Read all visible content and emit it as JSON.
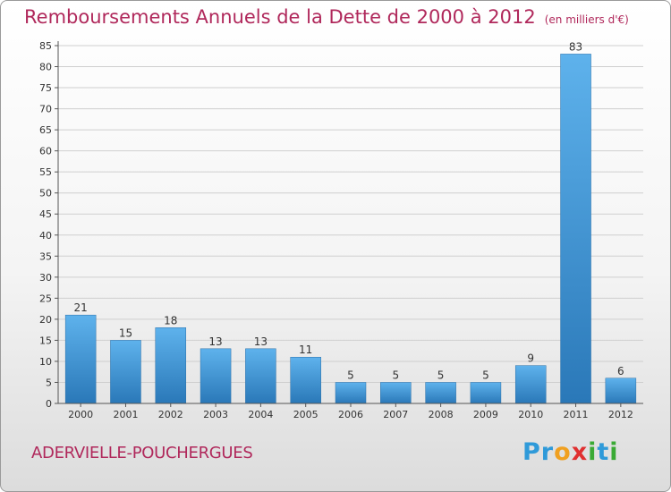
{
  "header": {
    "title": "Remboursements Annuels de la Dette de 2000 à 2012",
    "unit": "(en milliers d'€)"
  },
  "footer": {
    "commune": "ADERVIELLE-POUCHERGUES",
    "logo_letters": [
      {
        "ch": "P",
        "color": "#2f9ad9"
      },
      {
        "ch": "r",
        "color": "#2f9ad9"
      },
      {
        "ch": "o",
        "color": "#f0a020"
      },
      {
        "ch": "x",
        "color": "#e03030"
      },
      {
        "ch": "i",
        "color": "#3aaa35"
      },
      {
        "ch": "t",
        "color": "#2f9ad9"
      },
      {
        "ch": "i",
        "color": "#3aaa35"
      }
    ]
  },
  "chart_data": {
    "type": "bar",
    "title": "Remboursements Annuels de la Dette de 2000 à 2012",
    "subtitle": "(en milliers d'€)",
    "categories": [
      "2000",
      "2001",
      "2002",
      "2003",
      "2004",
      "2005",
      "2006",
      "2007",
      "2008",
      "2009",
      "2010",
      "2011",
      "2012"
    ],
    "values": [
      21,
      15,
      18,
      13,
      13,
      11,
      5,
      5,
      5,
      5,
      9,
      83,
      6
    ],
    "ylim": [
      0,
      85
    ],
    "yticks": [
      0,
      5,
      10,
      15,
      20,
      25,
      30,
      35,
      40,
      45,
      50,
      55,
      60,
      65,
      70,
      75,
      80,
      85
    ],
    "grid": true,
    "bar_color": "#4a9ee0"
  }
}
